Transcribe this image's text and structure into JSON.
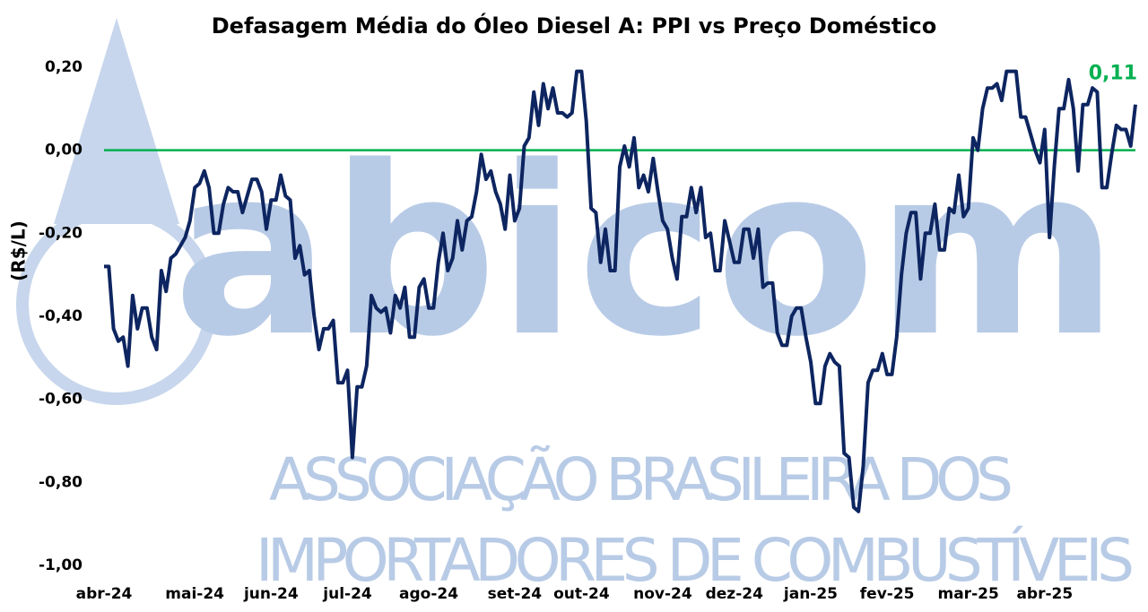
{
  "watermark": {
    "name": "abicom",
    "lines": [
      "ASSOCIAÇÃO BRASILEIRA DOS",
      "IMPORTADORES DE COMBUSTÍVEIS"
    ]
  },
  "chart_data": {
    "type": "line",
    "title": "Defasagem Média do Óleo Diesel A: PPI vs Preço Doméstico",
    "y_label": "(R$/L)",
    "annotation": "0,11",
    "annotation_color": "#00b050",
    "zero_line_color": "#00b050",
    "ylim": [
      -1.0,
      0.2
    ],
    "yticks": [
      {
        "value": 0.2,
        "label": "0,20"
      },
      {
        "value": 0,
        "label": "0,00"
      },
      {
        "value": -0.2,
        "label": "-0,20"
      },
      {
        "value": -0.4,
        "label": "-0,40"
      },
      {
        "value": -0.6,
        "label": "-0,60"
      },
      {
        "value": -0.8,
        "label": "-0,80"
      },
      {
        "value": -1.0,
        "label": "-1,00"
      }
    ],
    "categories": [
      "abr-24",
      null,
      null,
      null,
      null,
      null,
      null,
      null,
      null,
      null,
      null,
      null,
      null,
      null,
      null,
      null,
      null,
      null,
      null,
      "mai-24",
      null,
      null,
      null,
      null,
      null,
      null,
      null,
      null,
      null,
      null,
      null,
      null,
      null,
      null,
      null,
      "jun-24",
      null,
      null,
      null,
      null,
      null,
      null,
      null,
      null,
      null,
      null,
      null,
      null,
      null,
      null,
      null,
      "jul-24",
      null,
      null,
      null,
      null,
      null,
      null,
      null,
      null,
      null,
      null,
      null,
      null,
      null,
      null,
      null,
      null,
      "ago-24",
      null,
      null,
      null,
      null,
      null,
      null,
      null,
      null,
      null,
      null,
      null,
      null,
      null,
      null,
      null,
      null,
      null,
      "set-24",
      null,
      null,
      null,
      null,
      null,
      null,
      null,
      null,
      null,
      null,
      null,
      null,
      null,
      "out-24",
      null,
      null,
      null,
      null,
      null,
      null,
      null,
      null,
      null,
      null,
      null,
      null,
      null,
      null,
      null,
      null,
      "nov-24",
      null,
      null,
      null,
      null,
      null,
      null,
      null,
      null,
      null,
      null,
      null,
      null,
      null,
      null,
      "dez-24",
      null,
      null,
      null,
      null,
      null,
      null,
      null,
      null,
      null,
      null,
      null,
      null,
      null,
      null,
      null,
      "jan-25",
      null,
      null,
      null,
      null,
      null,
      null,
      null,
      null,
      null,
      null,
      null,
      null,
      null,
      null,
      null,
      "fev-25",
      null,
      null,
      null,
      null,
      null,
      null,
      null,
      null,
      null,
      null,
      null,
      null,
      null,
      null,
      null,
      null,
      "mar-25",
      null,
      null,
      null,
      null,
      null,
      null,
      null,
      null,
      null,
      null,
      null,
      null,
      null,
      null,
      null,
      "abr-25",
      null,
      null,
      null,
      null,
      null,
      null,
      null,
      null,
      null,
      null,
      null,
      null,
      null,
      null,
      null,
      null,
      null,
      null,
      null
    ],
    "series": [
      {
        "name": "Defasagem",
        "color": "#0d2560",
        "values": [
          -0.28,
          -0.28,
          -0.43,
          -0.46,
          -0.45,
          -0.52,
          -0.35,
          -0.43,
          -0.38,
          -0.38,
          -0.45,
          -0.48,
          -0.29,
          -0.34,
          -0.26,
          -0.25,
          -0.23,
          -0.21,
          -0.17,
          -0.09,
          -0.08,
          -0.05,
          -0.09,
          -0.2,
          -0.2,
          -0.13,
          -0.09,
          -0.1,
          -0.1,
          -0.15,
          -0.11,
          -0.07,
          -0.07,
          -0.1,
          -0.19,
          -0.12,
          -0.12,
          -0.06,
          -0.11,
          -0.12,
          -0.26,
          -0.23,
          -0.3,
          -0.29,
          -0.4,
          -0.48,
          -0.43,
          -0.43,
          -0.41,
          -0.56,
          -0.56,
          -0.53,
          -0.74,
          -0.57,
          -0.57,
          -0.52,
          -0.35,
          -0.38,
          -0.39,
          -0.38,
          -0.44,
          -0.35,
          -0.38,
          -0.33,
          -0.45,
          -0.45,
          -0.33,
          -0.31,
          -0.38,
          -0.38,
          -0.27,
          -0.2,
          -0.29,
          -0.26,
          -0.17,
          -0.24,
          -0.17,
          -0.16,
          -0.1,
          -0.01,
          -0.07,
          -0.05,
          -0.1,
          -0.13,
          -0.19,
          -0.06,
          -0.17,
          -0.14,
          0.01,
          0.03,
          0.14,
          0.06,
          0.16,
          0.1,
          0.15,
          0.09,
          0.09,
          0.08,
          0.09,
          0.19,
          0.19,
          0.07,
          -0.14,
          -0.15,
          -0.27,
          -0.19,
          -0.29,
          -0.29,
          -0.04,
          0.01,
          -0.04,
          0.03,
          -0.09,
          -0.06,
          -0.1,
          -0.02,
          -0.1,
          -0.17,
          -0.19,
          -0.26,
          -0.31,
          -0.16,
          -0.16,
          -0.09,
          -0.15,
          -0.09,
          -0.21,
          -0.2,
          -0.29,
          -0.29,
          -0.17,
          -0.22,
          -0.27,
          -0.27,
          -0.19,
          -0.19,
          -0.26,
          -0.19,
          -0.33,
          -0.32,
          -0.32,
          -0.44,
          -0.47,
          -0.47,
          -0.4,
          -0.38,
          -0.38,
          -0.45,
          -0.51,
          -0.61,
          -0.61,
          -0.52,
          -0.49,
          -0.51,
          -0.52,
          -0.73,
          -0.74,
          -0.86,
          -0.87,
          -0.76,
          -0.56,
          -0.53,
          -0.53,
          -0.49,
          -0.54,
          -0.54,
          -0.45,
          -0.3,
          -0.2,
          -0.15,
          -0.15,
          -0.31,
          -0.2,
          -0.2,
          -0.13,
          -0.24,
          -0.24,
          -0.14,
          -0.15,
          -0.06,
          -0.16,
          -0.14,
          0.03,
          0.0,
          0.1,
          0.15,
          0.15,
          0.16,
          0.12,
          0.19,
          0.19,
          0.19,
          0.08,
          0.08,
          0.04,
          0.0,
          -0.03,
          0.05,
          -0.21,
          -0.04,
          0.1,
          0.1,
          0.17,
          0.1,
          -0.05,
          0.11,
          0.11,
          0.15,
          0.14,
          -0.09,
          -0.09,
          -0.01,
          0.06,
          0.05,
          0.05,
          0.01,
          0.11
        ]
      }
    ]
  }
}
